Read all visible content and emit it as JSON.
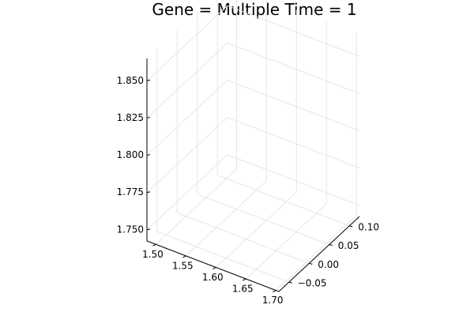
{
  "chart_data": {
    "type": "scatter",
    "projection": "3d",
    "title": "Gene = Multiple Time = 1",
    "xlabel": "",
    "ylabel": "",
    "zlabel": "",
    "x_ticks": [
      "1.50",
      "1.55",
      "1.60",
      "1.65",
      "1.70"
    ],
    "x_tick_values": [
      1.5,
      1.55,
      1.6,
      1.65,
      1.7
    ],
    "y_ticks": [
      "−0.05",
      "0.00",
      "0.05",
      "0.10"
    ],
    "y_tick_values": [
      -0.05,
      0.0,
      0.05,
      0.1
    ],
    "z_ticks": [
      "1.750",
      "1.775",
      "1.800",
      "1.825",
      "1.850"
    ],
    "z_tick_values": [
      1.75,
      1.775,
      1.8,
      1.825,
      1.85
    ],
    "xlim": [
      1.485,
      1.705
    ],
    "ylim": [
      -0.075,
      0.125
    ],
    "zlim": [
      1.7425,
      1.865
    ],
    "grid": true,
    "legend": "none",
    "series": [],
    "colors": {
      "grid": "#e6e6e6",
      "axis": "#000000",
      "text": "#000000",
      "background": "#ffffff"
    }
  }
}
